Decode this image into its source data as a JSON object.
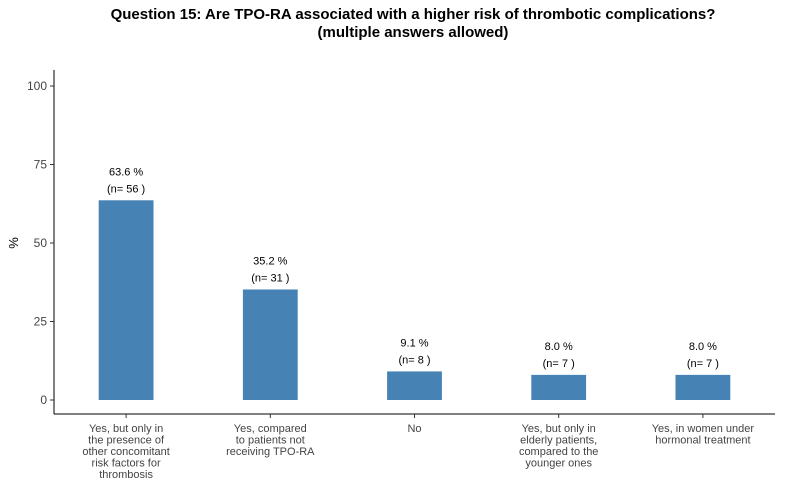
{
  "chart_data": {
    "type": "bar",
    "title_lines": [
      "Question 15: Are TPO-RA associated with a higher risk of thrombotic complications?",
      "(multiple answers allowed)"
    ],
    "ylabel": "%",
    "xlabel": "",
    "ylim": [
      0,
      100
    ],
    "yticks": [
      0,
      25,
      50,
      75,
      100
    ],
    "grid": false,
    "bar_color": "#4682B4",
    "categories": [
      [
        "Yes, but only in",
        "the presence of",
        "other concomitant",
        "risk factors for",
        "thrombosis"
      ],
      [
        "Yes, compared",
        "to patients not",
        "receiving TPO-RA"
      ],
      [
        "No"
      ],
      [
        "Yes, but only in",
        "elderly patients,",
        "compared to the",
        "younger ones"
      ],
      [
        "Yes, in women under",
        "hormonal treatment"
      ]
    ],
    "values": [
      63.6,
      35.2,
      9.1,
      8.0,
      8.0
    ],
    "value_labels": [
      "63.6 %",
      "35.2 %",
      "9.1 %",
      "8.0 %",
      "8.0 %"
    ],
    "count_labels": [
      "(n= 56 )",
      "(n= 31 )",
      "(n= 8 )",
      "(n= 7 )",
      "(n= 7 )"
    ]
  }
}
